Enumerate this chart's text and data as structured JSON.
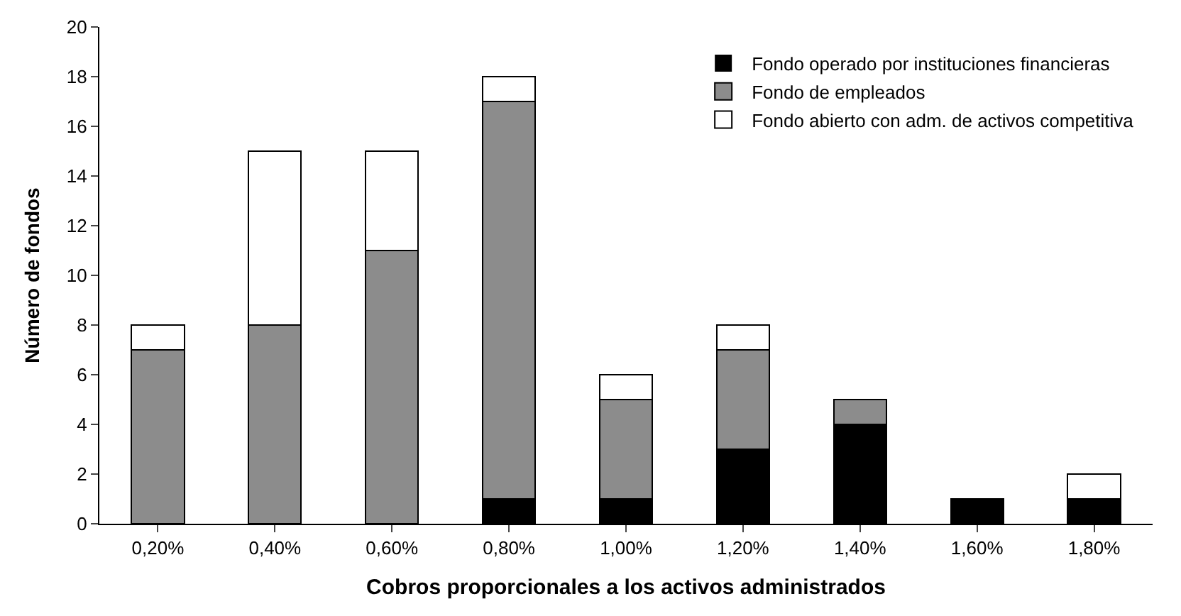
{
  "chart_data": {
    "type": "bar",
    "stacked": true,
    "xlabel": "Cobros proporcionales a los activos administrados",
    "ylabel": "Número de fondos",
    "categories": [
      "0,20%",
      "0,40%",
      "0,60%",
      "0,80%",
      "1,00%",
      "1,20%",
      "1,40%",
      "1,60%",
      "1,80%"
    ],
    "series": [
      {
        "name": "Fondo operado por instituciones financieras",
        "color": "#000000",
        "values": [
          0,
          0,
          0,
          1,
          1,
          3,
          4,
          1,
          1
        ]
      },
      {
        "name": "Fondo de empleados",
        "color": "#8c8c8c",
        "values": [
          7,
          8,
          11,
          16,
          4,
          4,
          1,
          0,
          0
        ]
      },
      {
        "name": "Fondo abierto con adm. de activos competitiva",
        "color": "#ffffff",
        "values": [
          1,
          7,
          4,
          1,
          1,
          1,
          0,
          0,
          1
        ]
      }
    ],
    "ylim": [
      0,
      20
    ],
    "yticks": [
      0,
      2,
      4,
      6,
      8,
      10,
      12,
      14,
      16,
      18,
      20
    ],
    "grid": false,
    "legend": "top right"
  }
}
